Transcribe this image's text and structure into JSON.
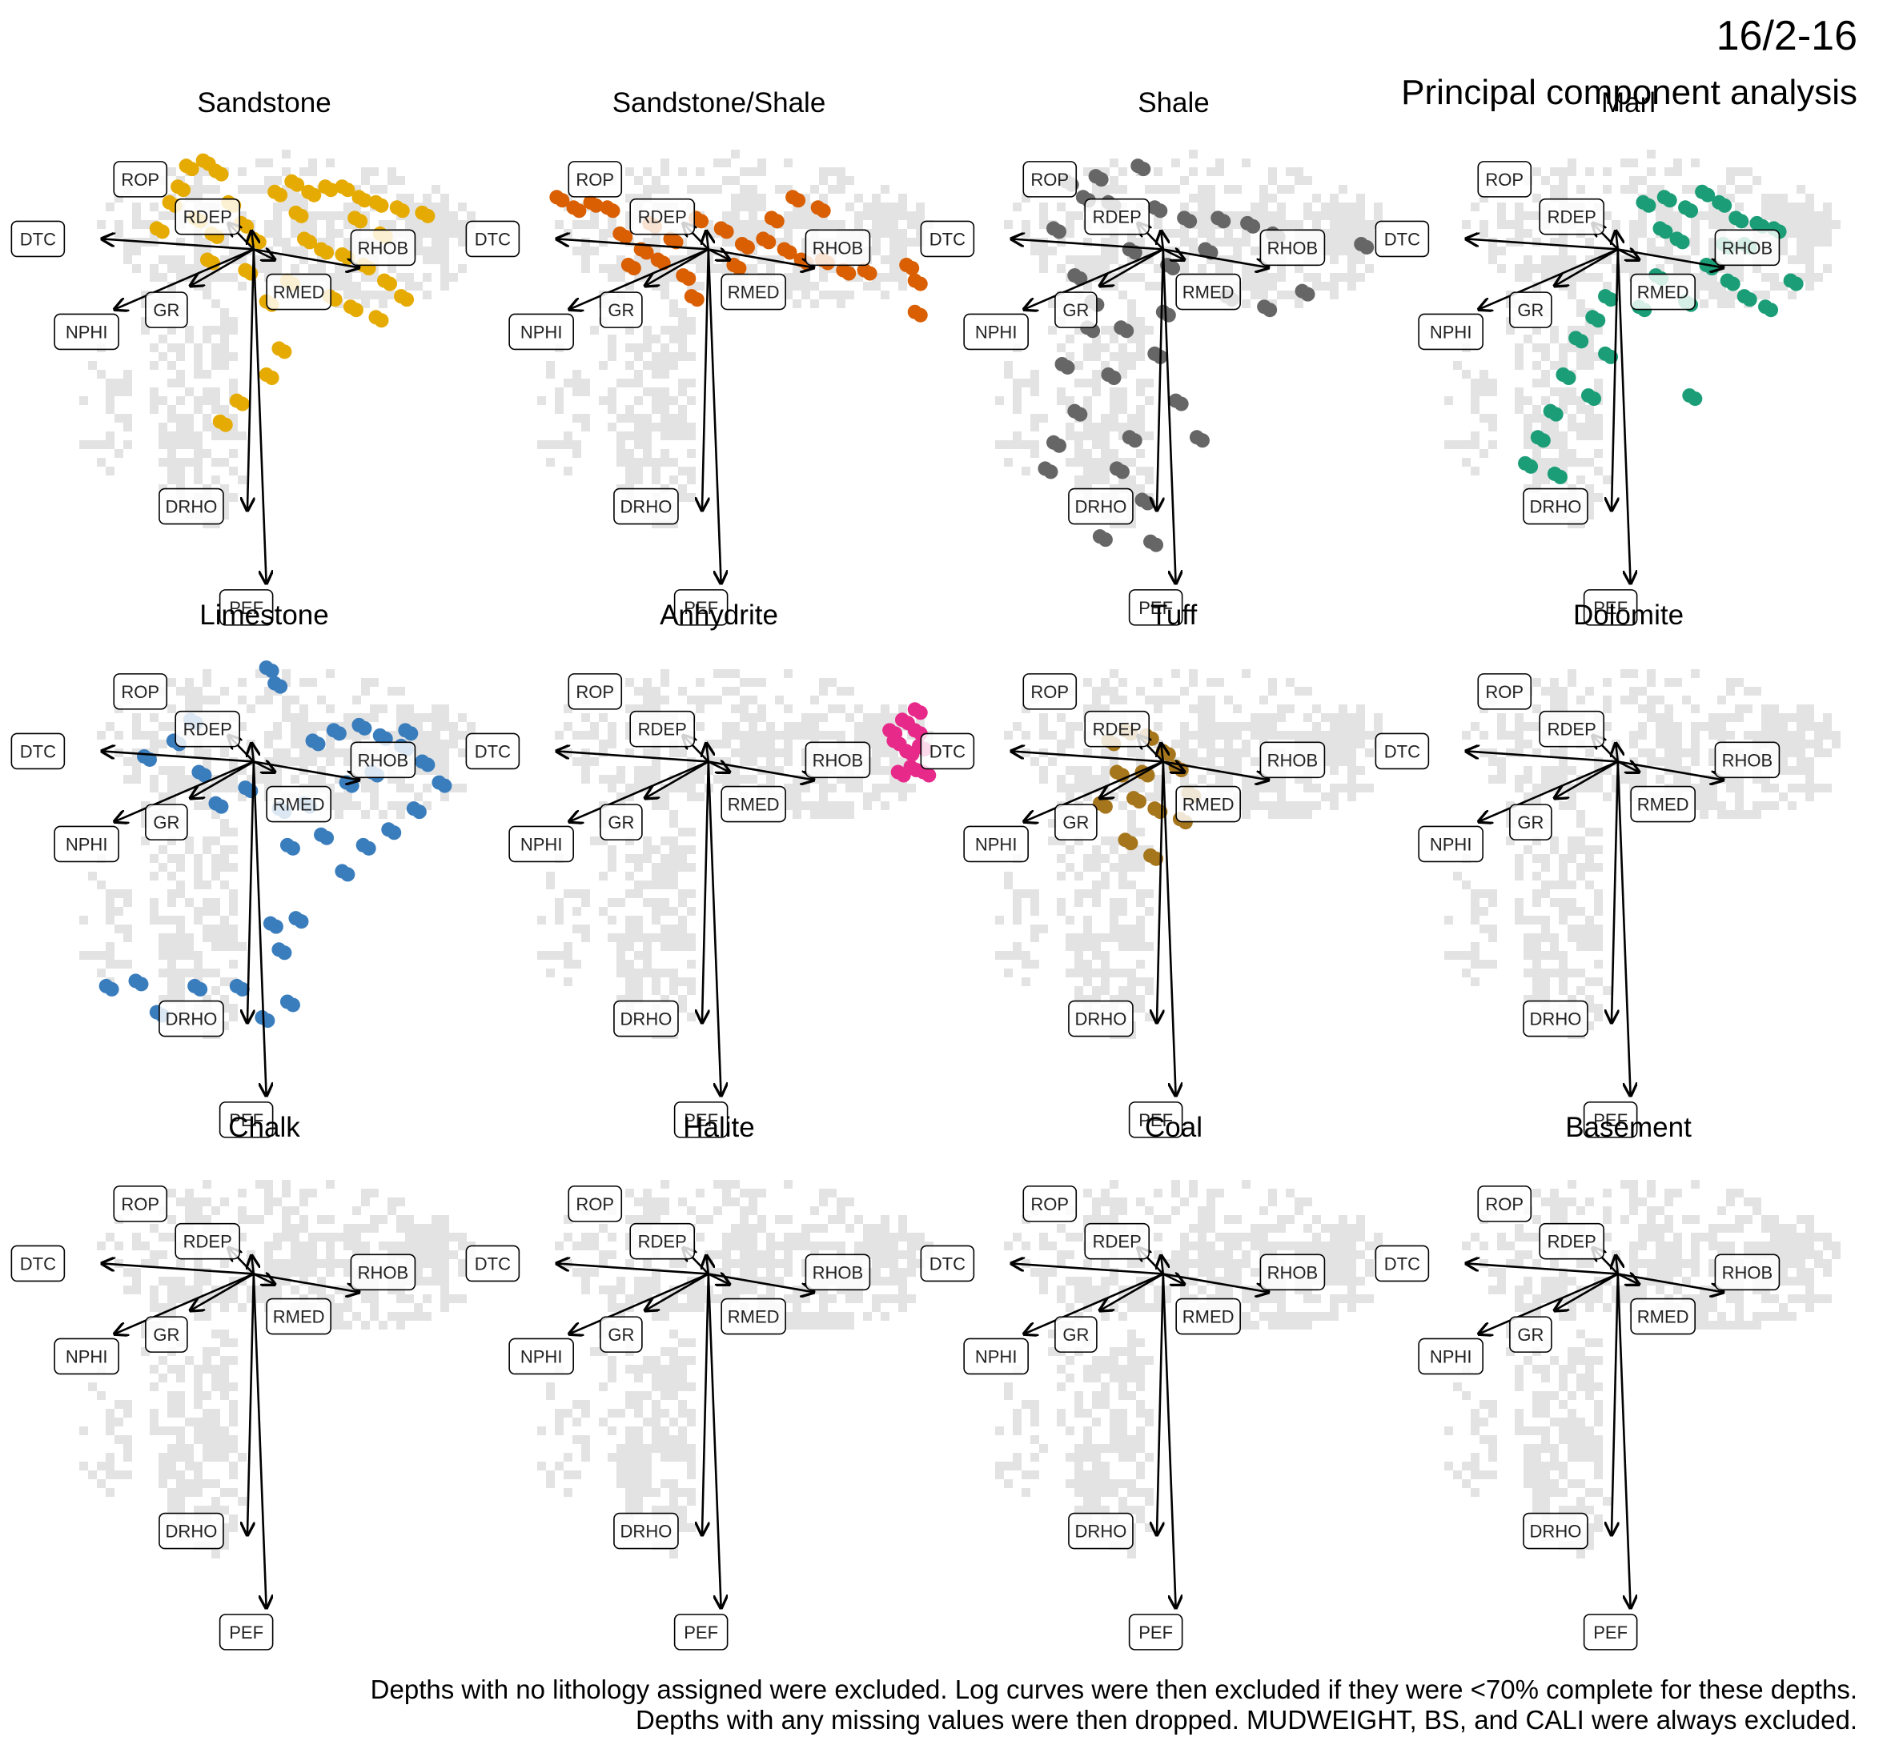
{
  "figure": {
    "well": "16/2-16",
    "title": "Principal component analysis",
    "caption_line1": "Depths with no lithology assigned were excluded. Log curves were then excluded if they were <70% complete for these depths.",
    "caption_line2": "Depths with any missing values were then dropped. MUDWEIGHT, BS, and CALI were always excluded."
  },
  "colors": {
    "background_cloud": "#e3e3e3",
    "arrow": "#000000",
    "label_box_stroke": "#000000",
    "Sandstone": "#e6ab02",
    "Sandstone/Shale": "#d95f02",
    "Shale": "#666666",
    "Marl": "#1b9e77",
    "Limestone": "#3a7dbd",
    "Anhydrite": "#e7298a",
    "Tuff": "#a6761d",
    "Dolomite": "#999999",
    "Chalk": "#999999",
    "Halite": "#999999",
    "Coal": "#999999",
    "Basement": "#999999"
  },
  "chart_data": {
    "type": "scatter",
    "description_kind": "PCA biplot small multiples",
    "xlim": [
      -4.5,
      5.0
    ],
    "ylim": [
      -7.0,
      2.2
    ],
    "grid": false,
    "axes_visible": false,
    "loadings": [
      {
        "name": "ROP",
        "x": -0.6,
        "y": 0.5
      },
      {
        "name": "RDEP",
        "x": -0.05,
        "y": 0.35
      },
      {
        "name": "DTC",
        "x": -3.6,
        "y": 0.2
      },
      {
        "name": "RHOB",
        "x": 2.5,
        "y": -0.35
      },
      {
        "name": "NPHI",
        "x": -3.3,
        "y": -1.15
      },
      {
        "name": "GR",
        "x": -1.5,
        "y": -0.7
      },
      {
        "name": "RMED",
        "x": 0.5,
        "y": -0.2
      },
      {
        "name": "DRHO",
        "x": -0.15,
        "y": -5.0
      },
      {
        "name": "PEF",
        "x": 0.3,
        "y": -6.4
      }
    ],
    "panels": [
      {
        "lithology": "Sandstone",
        "points": [
          [
            -1.6,
            1.6
          ],
          [
            -1.2,
            1.7
          ],
          [
            -0.9,
            1.5
          ],
          [
            -2.0,
            0.9
          ],
          [
            -1.4,
            0.6
          ],
          [
            -1.0,
            0.3
          ],
          [
            -0.6,
            0.9
          ],
          [
            -0.3,
            0.5
          ],
          [
            0.0,
            0.2
          ],
          [
            0.5,
            1.1
          ],
          [
            0.9,
            1.3
          ],
          [
            1.3,
            1.1
          ],
          [
            1.7,
            1.2
          ],
          [
            2.1,
            1.2
          ],
          [
            2.5,
            1.0
          ],
          [
            2.9,
            0.9
          ],
          [
            3.4,
            0.8
          ],
          [
            4.0,
            0.7
          ],
          [
            1.2,
            0.2
          ],
          [
            1.6,
            0.0
          ],
          [
            2.1,
            -0.1
          ],
          [
            2.6,
            -0.3
          ],
          [
            3.1,
            -0.6
          ],
          [
            3.5,
            -0.9
          ],
          [
            1.8,
            -0.9
          ],
          [
            2.3,
            -1.1
          ],
          [
            2.9,
            -1.3
          ],
          [
            0.8,
            -0.6
          ],
          [
            0.3,
            -1.0
          ],
          [
            -0.2,
            -0.4
          ],
          [
            0.6,
            -1.9
          ],
          [
            0.3,
            -2.4
          ],
          [
            -0.4,
            -2.9
          ],
          [
            -0.8,
            -3.3
          ],
          [
            -2.3,
            0.4
          ],
          [
            -1.8,
            1.2
          ],
          [
            1.0,
            0.7
          ],
          [
            3.0,
            0.3
          ],
          [
            2.4,
            0.6
          ],
          [
            -1.1,
            -0.2
          ]
        ]
      },
      {
        "lithology": "Sandstone/Shale",
        "points": [
          [
            -3.6,
            1.0
          ],
          [
            -3.2,
            0.8
          ],
          [
            -2.4,
            0.8
          ],
          [
            -2.1,
            0.3
          ],
          [
            -1.9,
            -0.3
          ],
          [
            -1.6,
            0.0
          ],
          [
            -1.2,
            -0.2
          ],
          [
            -0.9,
            0.2
          ],
          [
            -0.6,
            -0.5
          ],
          [
            -0.3,
            0.6
          ],
          [
            0.3,
            0.4
          ],
          [
            0.8,
            0.1
          ],
          [
            1.3,
            0.2
          ],
          [
            1.8,
            0.0
          ],
          [
            2.2,
            -0.2
          ],
          [
            2.7,
            -0.2
          ],
          [
            3.2,
            -0.4
          ],
          [
            3.7,
            -0.4
          ],
          [
            2.6,
            0.8
          ],
          [
            2.0,
            1.0
          ],
          [
            1.5,
            0.6
          ],
          [
            -1.4,
            0.5
          ],
          [
            -2.8,
            0.9
          ],
          [
            4.9,
            -0.6
          ],
          [
            4.9,
            -1.2
          ],
          [
            4.7,
            -0.3
          ],
          [
            -0.4,
            -0.9
          ],
          [
            0.6,
            -0.3
          ]
        ]
      },
      {
        "lithology": "Shale",
        "points": [
          [
            -2.3,
            1.3
          ],
          [
            -1.9,
            1.0
          ],
          [
            -1.6,
            1.4
          ],
          [
            -1.3,
            0.9
          ],
          [
            -0.6,
            1.6
          ],
          [
            -0.2,
            0.8
          ],
          [
            0.5,
            0.6
          ],
          [
            1.3,
            0.6
          ],
          [
            2.0,
            0.5
          ],
          [
            2.6,
            0.3
          ],
          [
            -2.6,
            0.4
          ],
          [
            -2.1,
            -0.5
          ],
          [
            -1.8,
            -1.5
          ],
          [
            -1.3,
            -2.4
          ],
          [
            -2.1,
            -3.1
          ],
          [
            -2.8,
            -4.2
          ],
          [
            -1.1,
            -4.2
          ],
          [
            -0.5,
            -4.8
          ],
          [
            -0.8,
            -3.6
          ],
          [
            0.3,
            -2.9
          ],
          [
            0.8,
            -3.6
          ],
          [
            -0.2,
            -2.0
          ],
          [
            -1.7,
            -1.0
          ],
          [
            -0.8,
            0.0
          ],
          [
            0.1,
            -0.3
          ],
          [
            1.5,
            -0.9
          ],
          [
            2.4,
            -1.1
          ],
          [
            3.3,
            -0.8
          ],
          [
            4.7,
            0.1
          ],
          [
            -2.6,
            -3.7
          ],
          [
            -1.5,
            -5.5
          ],
          [
            -0.3,
            -5.6
          ],
          [
            0.0,
            -1.2
          ],
          [
            -2.4,
            -2.2
          ],
          [
            1.0,
            0.0
          ],
          [
            -1.0,
            -1.5
          ]
        ]
      },
      {
        "lithology": "Marl",
        "points": [
          [
            0.6,
            0.9
          ],
          [
            1.1,
            1.0
          ],
          [
            1.6,
            0.8
          ],
          [
            2.0,
            1.1
          ],
          [
            2.4,
            0.9
          ],
          [
            2.8,
            0.6
          ],
          [
            3.3,
            0.5
          ],
          [
            3.7,
            0.4
          ],
          [
            1.4,
            0.2
          ],
          [
            2.1,
            -0.3
          ],
          [
            2.6,
            -0.6
          ],
          [
            3.0,
            -0.9
          ],
          [
            3.5,
            -1.1
          ],
          [
            4.1,
            -0.6
          ],
          [
            1.6,
            -1.0
          ],
          [
            0.9,
            -0.5
          ],
          [
            0.5,
            -1.1
          ],
          [
            -0.3,
            -0.9
          ],
          [
            -0.6,
            -1.3
          ],
          [
            -1.0,
            -1.7
          ],
          [
            -1.3,
            -2.4
          ],
          [
            -1.6,
            -3.1
          ],
          [
            -1.9,
            -3.6
          ],
          [
            -2.2,
            -4.1
          ],
          [
            -1.5,
            -4.3
          ],
          [
            -0.7,
            -2.8
          ],
          [
            -0.3,
            -2.0
          ],
          [
            1.7,
            -2.8
          ],
          [
            1.0,
            0.4
          ],
          [
            2.5,
            0.1
          ],
          [
            3.0,
            0.1
          ]
        ]
      },
      {
        "lithology": "Limestone",
        "points": [
          [
            0.3,
            1.8
          ],
          [
            0.5,
            1.5
          ],
          [
            -1.5,
            0.8
          ],
          [
            -1.9,
            0.4
          ],
          [
            -2.6,
            0.1
          ],
          [
            -1.3,
            -0.2
          ],
          [
            -0.9,
            -0.8
          ],
          [
            -0.2,
            -0.5
          ],
          [
            0.6,
            -0.9
          ],
          [
            1.4,
            0.4
          ],
          [
            1.9,
            0.6
          ],
          [
            2.5,
            0.7
          ],
          [
            3.0,
            0.5
          ],
          [
            3.5,
            0.3
          ],
          [
            4.0,
            0.0
          ],
          [
            4.4,
            -0.4
          ],
          [
            3.8,
            -0.9
          ],
          [
            3.2,
            -1.3
          ],
          [
            2.6,
            -1.6
          ],
          [
            2.1,
            -2.1
          ],
          [
            1.6,
            -1.4
          ],
          [
            1.2,
            -0.8
          ],
          [
            0.8,
            -1.6
          ],
          [
            0.4,
            -3.1
          ],
          [
            0.6,
            -3.6
          ],
          [
            0.8,
            -4.6
          ],
          [
            0.2,
            -4.9
          ],
          [
            -0.4,
            -4.3
          ],
          [
            -1.4,
            -4.3
          ],
          [
            -2.8,
            -4.2
          ],
          [
            -3.5,
            -4.3
          ],
          [
            -2.3,
            -4.8
          ],
          [
            1.0,
            -3.0
          ],
          [
            2.8,
            -0.2
          ],
          [
            3.6,
            0.6
          ],
          [
            2.2,
            -0.4
          ]
        ]
      },
      {
        "lithology": "Anhydrite",
        "points": [
          [
            4.6,
            0.8
          ],
          [
            4.9,
            0.6
          ],
          [
            5.0,
            0.3
          ],
          [
            4.7,
            0.2
          ],
          [
            4.4,
            0.4
          ],
          [
            4.8,
            -0.1
          ],
          [
            5.1,
            -0.2
          ],
          [
            4.5,
            -0.2
          ],
          [
            4.9,
            1.0
          ],
          [
            4.3,
            0.6
          ]
        ]
      },
      {
        "lithology": "Tuff",
        "points": [
          [
            -1.3,
            0.4
          ],
          [
            -0.9,
            0.6
          ],
          [
            -0.4,
            0.5
          ],
          [
            0.0,
            0.2
          ],
          [
            0.3,
            -0.1
          ],
          [
            -1.1,
            -0.2
          ],
          [
            -0.7,
            -0.7
          ],
          [
            -0.2,
            -0.9
          ],
          [
            0.4,
            -1.1
          ],
          [
            -1.5,
            -0.8
          ],
          [
            -0.9,
            -1.5
          ],
          [
            -0.3,
            -1.8
          ],
          [
            0.6,
            -0.6
          ],
          [
            -0.5,
            -0.2
          ]
        ]
      },
      {
        "lithology": "Dolomite",
        "points": []
      },
      {
        "lithology": "Chalk",
        "points": []
      },
      {
        "lithology": "Halite",
        "points": []
      },
      {
        "lithology": "Coal",
        "points": []
      },
      {
        "lithology": "Basement",
        "points": []
      }
    ]
  }
}
